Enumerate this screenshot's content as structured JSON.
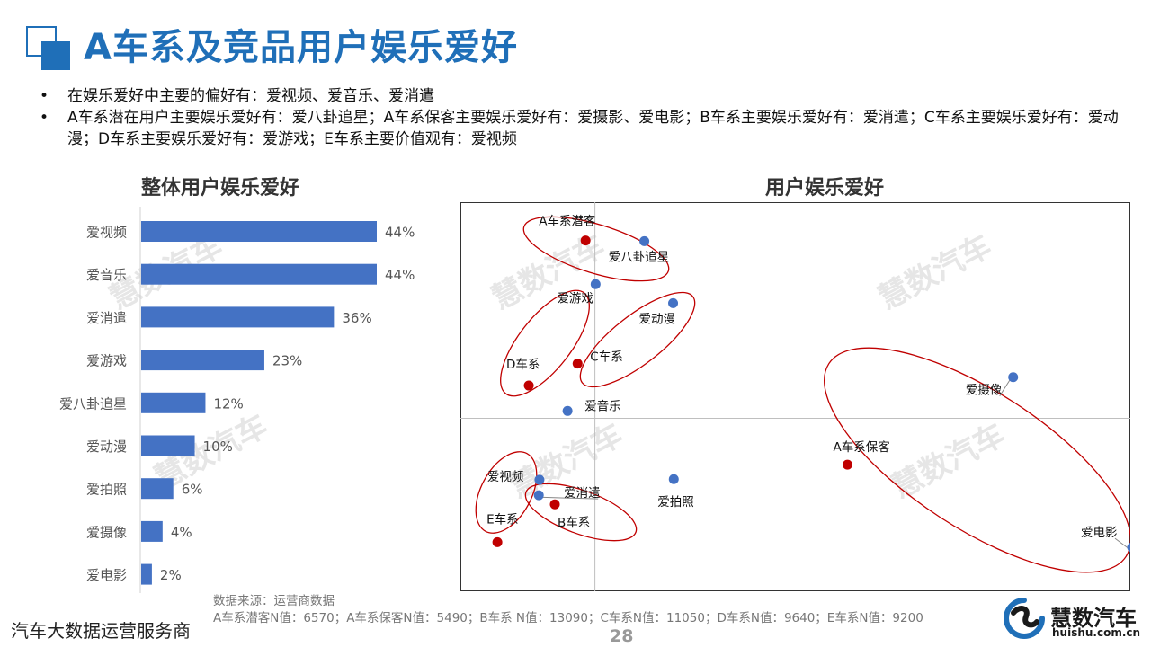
{
  "header": {
    "title": "A车系及竞品用户娱乐爱好"
  },
  "bullets": [
    {
      "marker": "•",
      "text": "在娱乐爱好中主要的偏好有：爱视频、爱音乐、爱消遣"
    },
    {
      "marker": "•",
      "text": "A车系潜在用户主要娱乐爱好有：爱八卦追星；A车系保客主要娱乐爱好有：爱摄影、爱电影；B车系主要娱乐爱好有：爱消遣；C车系主要娱乐爱好有：爱动漫；D车系主要娱乐爱好有：爱游戏；E车系主要价值观有：爱视频"
    }
  ],
  "watermark": "慧数汽车",
  "colors": {
    "title_blue": "#1f6fb8",
    "bar_blue": "#4472c4",
    "point_blue": "#4472c4",
    "point_red": "#c00000",
    "ellipse_red": "#c00000"
  },
  "chart_data": [
    {
      "type": "bar",
      "orientation": "horizontal",
      "title": "整体用户娱乐爱好",
      "categories": [
        "爱视频",
        "爱音乐",
        "爱消遣",
        "爱游戏",
        "爱八卦追星",
        "爱动漫",
        "爱拍照",
        "爱摄像",
        "爱电影"
      ],
      "values": [
        44,
        44,
        36,
        23,
        12,
        10,
        6,
        4,
        2
      ],
      "value_labels": [
        "44%",
        "44%",
        "36%",
        "23%",
        "12%",
        "10%",
        "6%",
        "4%",
        "2%"
      ],
      "unit": "%",
      "xlim": [
        0,
        44
      ]
    },
    {
      "type": "scatter",
      "title": "用户娱乐爱好",
      "axes_ticks_shown": false,
      "series": [
        {
          "role": "hobby",
          "color": "#4472c4",
          "points": [
            {
              "label": "爱八卦追星",
              "x": 0.074,
              "y": 0.823
            },
            {
              "label": "爱游戏",
              "x": 0.001,
              "y": 0.623
            },
            {
              "label": "爱动漫",
              "x": 0.117,
              "y": 0.535
            },
            {
              "label": "爱音乐",
              "x": -0.041,
              "y": 0.034
            },
            {
              "label": "爱摄像",
              "x": 0.626,
              "y": 0.191
            },
            {
              "label": "爱视频",
              "x": -0.083,
              "y": -0.286
            },
            {
              "label": "爱消遣",
              "x": -0.084,
              "y": -0.358
            },
            {
              "label": "爱拍照",
              "x": 0.118,
              "y": -0.283
            },
            {
              "label": "爱电影",
              "x": 0.804,
              "y": -0.6
            }
          ]
        },
        {
          "role": "car_series",
          "color": "#c00000",
          "points": [
            {
              "label": "A车系潜客",
              "x": -0.014,
              "y": 0.826
            },
            {
              "label": "D车系",
              "x": -0.099,
              "y": 0.152
            },
            {
              "label": "C车系",
              "x": -0.026,
              "y": 0.254
            },
            {
              "label": "A车系保客",
              "x": 0.378,
              "y": -0.216
            },
            {
              "label": "B车系",
              "x": -0.06,
              "y": -0.4
            },
            {
              "label": "E车系",
              "x": -0.146,
              "y": -0.576
            }
          ]
        }
      ],
      "xlim": [
        -0.2,
        0.8
      ],
      "ylim": [
        -0.8,
        1.0
      ]
    }
  ],
  "footnote": {
    "line1": "数据来源：运营商数据",
    "line2": "A车系潜客N值：6570；A车系保客N值：5490；B车系 N值：13090；C车系N值：11050；D车系N值：9640；E车系N值：9200"
  },
  "footer": {
    "left_text": "汽车大数据运营服务商",
    "page_number": "28",
    "brand_name": "慧数汽车",
    "brand_url": "huishu.com.cn"
  }
}
